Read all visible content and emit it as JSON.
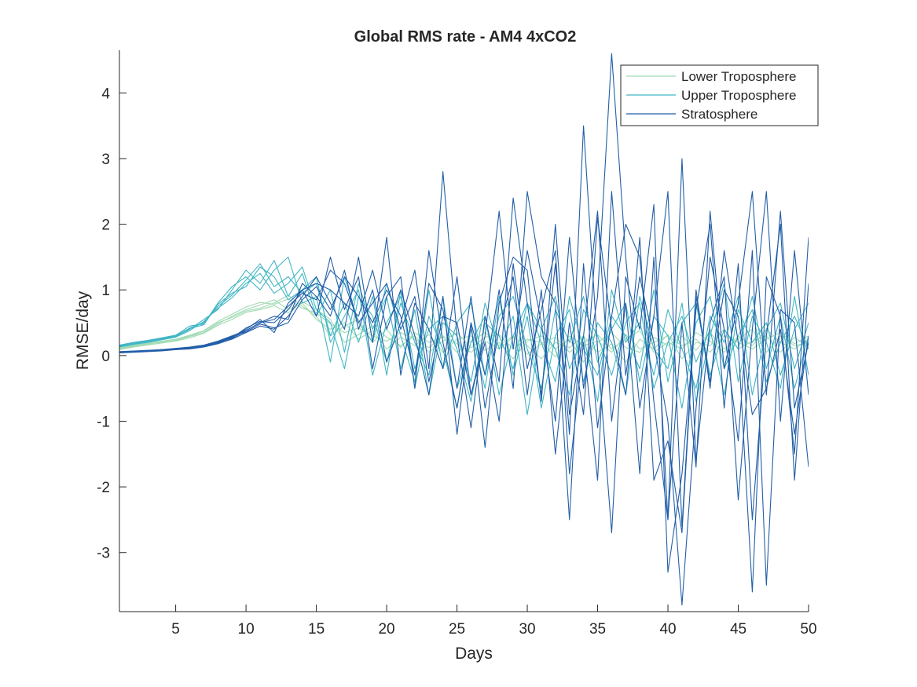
{
  "chart_data": {
    "type": "line",
    "title": "Global RMS rate - AM4 4xCO2",
    "xlabel": "Days",
    "ylabel": "RMSE/day",
    "xlim": [
      1,
      50
    ],
    "ylim": [
      -3.9,
      4.65
    ],
    "xticks": [
      5,
      10,
      15,
      20,
      25,
      30,
      35,
      40,
      45,
      50
    ],
    "xtick_labels": [
      "5",
      "10",
      "15",
      "20",
      "25",
      "30",
      "35",
      "40",
      "45",
      "50"
    ],
    "yticks": [
      -3,
      -2,
      -1,
      0,
      1,
      2,
      3,
      4
    ],
    "ytick_labels": [
      "-3",
      "-2",
      "-1",
      "0",
      "1",
      "2",
      "3",
      "4"
    ],
    "grid": false,
    "legend_position": "top-right",
    "x": [
      1,
      2,
      3,
      4,
      5,
      6,
      7,
      8,
      9,
      10,
      11,
      12,
      13,
      14,
      15,
      16,
      17,
      18,
      19,
      20,
      21,
      22,
      23,
      24,
      25,
      26,
      27,
      28,
      29,
      30,
      31,
      32,
      33,
      34,
      35,
      36,
      37,
      38,
      39,
      40,
      41,
      42,
      43,
      44,
      45,
      46,
      47,
      48,
      49,
      50
    ],
    "series": [
      {
        "name": "Lower Troposphere",
        "color": "#a1dab4",
        "values": [
          [
            0.12,
            0.16,
            0.19,
            0.22,
            0.25,
            0.31,
            0.38,
            0.52,
            0.63,
            0.74,
            0.81,
            0.78,
            0.86,
            0.72,
            0.65,
            0.48,
            0.35,
            0.42,
            0.3,
            0.22,
            0.35,
            0.25,
            0.12,
            0.3,
            0.18,
            0.05,
            0.22,
            0.1,
            0.28,
            0.15,
            -0.05,
            0.2,
            0.12,
            0.3,
            0.05,
            0.18,
            -0.1,
            0.25,
            0.1,
            0.32,
            -0.05,
            0.2,
            0.15,
            0.4,
            0.1,
            0.22,
            0.3,
            0.05,
            0.28,
            0.12
          ],
          [
            0.1,
            0.14,
            0.17,
            0.21,
            0.23,
            0.29,
            0.35,
            0.48,
            0.6,
            0.7,
            0.77,
            0.85,
            0.7,
            0.8,
            0.55,
            0.4,
            0.5,
            0.25,
            0.38,
            0.1,
            0.28,
            0.15,
            0.32,
            0.05,
            0.25,
            0.3,
            0.08,
            0.2,
            -0.05,
            0.22,
            0.3,
            0.1,
            0.25,
            -0.1,
            0.2,
            0.35,
            0.12,
            0.05,
            0.28,
            0.15,
            0.3,
            0.08,
            0.35,
            0.1,
            0.25,
            0.4,
            0.05,
            0.3,
            0.15,
            0.2
          ],
          [
            0.11,
            0.15,
            0.18,
            0.2,
            0.24,
            0.3,
            0.37,
            0.5,
            0.58,
            0.68,
            0.72,
            0.8,
            0.92,
            0.75,
            0.6,
            0.3,
            0.45,
            0.55,
            0.2,
            0.4,
            0.12,
            0.35,
            0.2,
            0.28,
            0.05,
            0.22,
            0.35,
            0.15,
            0.3,
            0.02,
            0.18,
            0.28,
            0.05,
            0.2,
            0.32,
            0.1,
            0.25,
            0.38,
            0.05,
            0.2,
            0.1,
            0.35,
            0.22,
            0.05,
            0.3,
            0.15,
            0.4,
            0.2,
            0.1,
            0.25
          ],
          [
            0.09,
            0.13,
            0.16,
            0.19,
            0.22,
            0.27,
            0.34,
            0.46,
            0.55,
            0.66,
            0.7,
            0.76,
            0.65,
            0.82,
            0.7,
            0.55,
            0.2,
            0.32,
            0.45,
            0.28,
            0.15,
            0.3,
            0.05,
            0.22,
            0.35,
            0.12,
            0.28,
            0.32,
            0.1,
            0.25,
            0.2,
            -0.02,
            0.3,
            0.15,
            0.22,
            0.05,
            0.32,
            0.1,
            0.2,
            0.3,
            0.15,
            0.25,
            0.05,
            0.3,
            0.2,
            0.1,
            0.25,
            0.35,
            0.18,
            0.3
          ]
        ]
      },
      {
        "name": "Upper Troposphere",
        "color": "#41b6c4",
        "values": [
          [
            0.15,
            0.19,
            0.22,
            0.26,
            0.3,
            0.42,
            0.5,
            0.75,
            0.92,
            1.15,
            1.4,
            1.05,
            1.2,
            0.95,
            1.1,
            0.3,
            0.8,
            0.2,
            0.9,
            -0.3,
            1.0,
            -0.5,
            0.6,
            0.1,
            -0.8,
            0.4,
            -0.5,
            0.9,
            -0.3,
            0.6,
            -0.8,
            0.3,
            0.7,
            -0.4,
            0.5,
            0.2,
            -0.6,
            0.9,
            0.1,
            -0.2,
            0.8,
            -0.7,
            0.3,
            1.1,
            -0.4,
            0.6,
            0.2,
            -0.5,
            0.9,
            -0.3
          ],
          [
            0.14,
            0.18,
            0.21,
            0.25,
            0.29,
            0.4,
            0.55,
            0.7,
            1.0,
            1.3,
            1.1,
            1.45,
            0.9,
            1.25,
            0.6,
            1.0,
            0.05,
            1.1,
            0.4,
            0.9,
            -0.2,
            0.7,
            -0.6,
            0.5,
            0.3,
            -0.4,
            0.8,
            0.1,
            0.6,
            -0.9,
            0.4,
            0.9,
            -0.2,
            0.3,
            -0.7,
            1.0,
            0.2,
            0.5,
            -0.3,
            0.7,
            0.1,
            -0.5,
            0.6,
            0.2,
            0.9,
            -0.6,
            0.4,
            0.8,
            -0.2,
            0.5
          ],
          [
            0.16,
            0.2,
            0.23,
            0.27,
            0.31,
            0.45,
            0.48,
            0.8,
            1.05,
            1.2,
            1.0,
            1.3,
            1.5,
            0.8,
            0.9,
            -0.1,
            1.2,
            0.5,
            0.2,
            1.1,
            0.3,
            -0.4,
            1.0,
            -0.2,
            0.5,
            0.8,
            -0.3,
            0.6,
            0.9,
            0.1,
            -0.5,
            0.7,
            0.2,
            0.9,
            -0.1,
            0.4,
            0.8,
            -0.4,
            0.6,
            0.3,
            -0.8,
            0.5,
            0.9,
            -0.2,
            0.3,
            0.7,
            -0.4,
            0.2,
            0.6,
            0.1
          ],
          [
            0.13,
            0.17,
            0.2,
            0.24,
            0.28,
            0.38,
            0.52,
            0.72,
            0.88,
            1.1,
            1.25,
            0.95,
            1.1,
            1.35,
            0.7,
            0.5,
            -0.2,
            0.9,
            0.6,
            -0.1,
            0.8,
            0.2,
            -0.3,
            0.9,
            -0.5,
            0.2,
            0.6,
            -0.6,
            0.3,
            0.8,
            0.2,
            -0.4,
            0.9,
            0.1,
            -0.3,
            0.6,
            0.3,
            -0.2,
            1.0,
            -0.4,
            0.5,
            0.8,
            -0.3,
            0.4,
            0.1,
            0.9,
            -0.2,
            0.6,
            -0.5,
            0.3
          ],
          [
            0.15,
            0.18,
            0.22,
            0.25,
            0.3,
            0.41,
            0.47,
            0.78,
            0.95,
            1.05,
            1.35,
            1.2,
            0.85,
            1.0,
            1.2,
            0.2,
            0.6,
            1.0,
            -0.3,
            0.5,
            0.9,
            -0.2,
            0.4,
            0.6,
            0.1,
            -0.7,
            0.5,
            0.3,
            -0.2,
            0.8,
            0.4,
            0.1,
            -0.6,
            0.7,
            0.3,
            -0.3,
            0.5,
            0.8,
            -0.5,
            0.2,
            0.6,
            -0.1,
            0.4,
            -0.6,
            0.7,
            0.2,
            0.5,
            -0.3,
            0.4,
            0.8
          ]
        ]
      },
      {
        "name": "Stratosphere",
        "color": "#225ea8",
        "values": [
          [
            0.05,
            0.06,
            0.07,
            0.08,
            0.1,
            0.12,
            0.15,
            0.2,
            0.28,
            0.4,
            0.55,
            0.35,
            0.8,
            1.0,
            0.6,
            1.5,
            0.7,
            1.2,
            -0.2,
            0.9,
            1.2,
            -0.5,
            1.6,
            0.2,
            -0.8,
            0.5,
            -1.4,
            0.8,
            1.5,
            1.3,
            -0.7,
            2.0,
            -0.9,
            0.3,
            2.2,
            -1.0,
            0.8,
            -1.8,
            1.5,
            -2.5,
            3.0,
            -1.6,
            0.5,
            1.2,
            -2.2,
            0.4,
            2.5,
            -1.0,
            1.6,
            -0.6
          ],
          [
            0.05,
            0.06,
            0.07,
            0.09,
            0.11,
            0.13,
            0.16,
            0.22,
            0.3,
            0.38,
            0.5,
            0.6,
            0.55,
            1.1,
            0.9,
            0.6,
            1.3,
            0.4,
            1.0,
            -0.1,
            0.5,
            1.3,
            -0.2,
            2.8,
            0.3,
            -1.1,
            0.6,
            -0.4,
            2.4,
            0.8,
            -0.6,
            1.4,
            -1.2,
            3.5,
            0.1,
            -2.7,
            1.2,
            0.4,
            2.3,
            -3.3,
            -1.8,
            0.7,
            2.0,
            -0.8,
            1.4,
            -2.5,
            0.3,
            2.0,
            -1.9,
            1.1
          ],
          [
            0.04,
            0.05,
            0.06,
            0.07,
            0.09,
            0.1,
            0.13,
            0.18,
            0.25,
            0.35,
            0.45,
            0.4,
            0.6,
            0.9,
            1.2,
            0.8,
            0.4,
            1.5,
            0.2,
            1.8,
            -0.3,
            0.8,
            0.4,
            -0.2,
            1.2,
            -0.6,
            0.3,
            2.2,
            0.1,
            1.6,
            0.5,
            -1.0,
            1.8,
            -0.5,
            0.9,
            4.6,
            1.5,
            -0.8,
            0.6,
            2.5,
            -2.6,
            1.0,
            -0.5,
            1.6,
            0.2,
            -3.6,
            1.2,
            0.6,
            -1.5,
            1.8
          ],
          [
            0.05,
            0.06,
            0.07,
            0.08,
            0.09,
            0.11,
            0.14,
            0.19,
            0.27,
            0.42,
            0.52,
            0.5,
            0.7,
            1.0,
            1.1,
            1.0,
            0.8,
            0.6,
            1.3,
            0.4,
            1.0,
            0.3,
            -0.6,
            0.9,
            -1.2,
            0.5,
            -0.3,
            1.0,
            -0.5,
            2.5,
            1.2,
            0.8,
            -2.5,
            1.4,
            -1.1,
            0.6,
            2.0,
            1.5,
            -0.7,
            -2.5,
            0.5,
            -1.7,
            2.2,
            -0.2,
            0.8,
            2.5,
            -0.6,
            2.2,
            -0.8,
            0.2
          ],
          [
            0.06,
            0.07,
            0.08,
            0.09,
            0.1,
            0.12,
            0.15,
            0.21,
            0.29,
            0.36,
            0.48,
            0.42,
            0.5,
            0.85,
            1.05,
            0.7,
            1.2,
            0.9,
            0.5,
            1.0,
            0.6,
            -0.3,
            1.1,
            0.7,
            -0.5,
            0.9,
            -0.8,
            0.4,
            1.2,
            -0.6,
            1.0,
            -1.5,
            0.5,
            -0.9,
            2.1,
            0.4,
            -0.6,
            1.8,
            -1.9,
            -1.3,
            -2.7,
            0.9,
            -0.4,
            1.0,
            0.6,
            -0.9,
            -0.5,
            0.4,
            -1.2,
            0.3
          ],
          [
            0.05,
            0.06,
            0.07,
            0.08,
            0.1,
            0.11,
            0.14,
            0.2,
            0.26,
            0.38,
            0.5,
            0.55,
            0.75,
            0.95,
            0.85,
            1.3,
            1.1,
            0.5,
            0.8,
            1.1,
            0.4,
            0.9,
            -0.4,
            0.6,
            0.5,
            -0.6,
            0.2,
            -1.0,
            1.4,
            -0.2,
            0.7,
            1.6,
            -1.8,
            0.2,
            -1.9,
            2.5,
            -0.3,
            1.2,
            0.2,
            -1.0,
            -3.8,
            -0.8,
            1.5,
            0.4,
            -1.3,
            1.6,
            -3.5,
            0.7,
            0.5,
            -1.7
          ]
        ]
      }
    ]
  }
}
